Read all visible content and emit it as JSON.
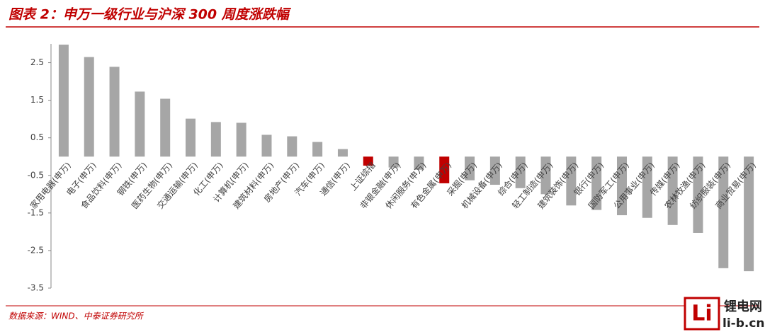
{
  "chart_data": {
    "type": "bar",
    "title": "图表 2：申万一级行业与沪深 300 周度涨跌幅",
    "source": "数据来源：WIND、中泰证券研究所",
    "watermark": [
      "锂电网",
      "li-b.cn"
    ],
    "categories": [
      "家用电器(申万)",
      "电子(申万)",
      "食品饮料(申万)",
      "钢铁(申万)",
      "医药生物(申万)",
      "交通运输(申万)",
      "化工(申万)",
      "计算机(申万)",
      "建筑材料(申万)",
      "房地产(申万)",
      "汽车(申万)",
      "通信(申万)",
      "上证综指",
      "非银金融(申万)",
      "休闲服务(申万)",
      "有色金属(申万)",
      "采掘(申万)",
      "机械设备(申万)",
      "综合(申万)",
      "轻工制造(申万)",
      "建筑装饰(申万)",
      "银行(申万)",
      "国防军工(申万)",
      "公用事业(申万)",
      "传媒(申万)",
      "农林牧渔(申万)",
      "纺织服装(申万)",
      "商业贸易(申万)"
    ],
    "values": [
      2.98,
      2.65,
      2.39,
      1.73,
      1.54,
      1.01,
      0.92,
      0.9,
      0.58,
      0.54,
      0.39,
      0.2,
      -0.24,
      -0.29,
      -0.35,
      -0.71,
      -0.63,
      -0.75,
      -0.84,
      -1.0,
      -1.3,
      -1.42,
      -1.56,
      -1.63,
      -1.82,
      -2.03,
      -2.97,
      -3.05
    ],
    "colors": [
      "#a6a6a6",
      "#a6a6a6",
      "#a6a6a6",
      "#a6a6a6",
      "#a6a6a6",
      "#a6a6a6",
      "#a6a6a6",
      "#a6a6a6",
      "#a6a6a6",
      "#a6a6a6",
      "#a6a6a6",
      "#a6a6a6",
      "#c00000",
      "#a6a6a6",
      "#a6a6a6",
      "#c00000",
      "#a6a6a6",
      "#a6a6a6",
      "#a6a6a6",
      "#a6a6a6",
      "#a6a6a6",
      "#a6a6a6",
      "#a6a6a6",
      "#a6a6a6",
      "#a6a6a6",
      "#a6a6a6",
      "#a6a6a6",
      "#a6a6a6"
    ],
    "ylim": [
      -3.5,
      3.0
    ],
    "yticks": [
      2.5,
      1.5,
      0.5,
      -0.5,
      -1.5,
      -2.5,
      -3.5
    ],
    "grid": false
  }
}
